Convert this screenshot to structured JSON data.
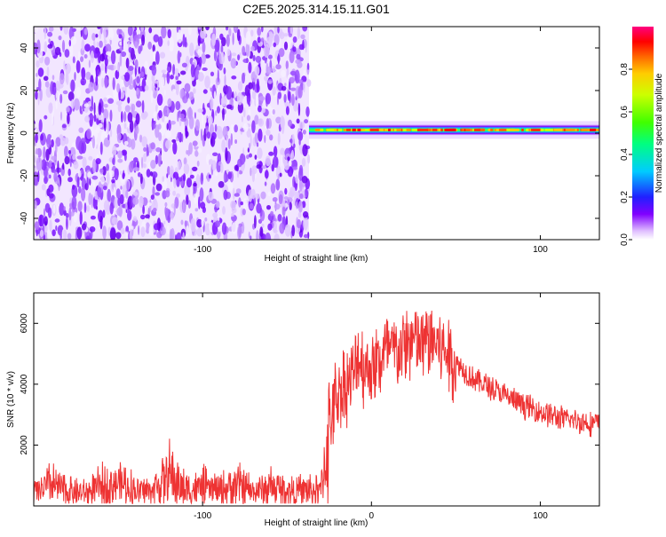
{
  "title": "C2E5.2025.314.15.11.G01",
  "chart_data": [
    {
      "type": "heatmap",
      "xlabel": "Height of straight line (km)",
      "ylabel": "Frequency (Hz)",
      "xlim": [
        -200,
        135
      ],
      "ylim": [
        -50,
        50
      ],
      "x_ticks": [
        -100,
        0,
        100
      ],
      "x_tick_labels": [
        "-100",
        "",
        "100"
      ],
      "y_ticks": [
        -40,
        -20,
        0,
        20,
        40
      ],
      "y_tick_labels": [
        "-40",
        "-20",
        "0",
        "20",
        "40"
      ],
      "noise_region_x": [
        -200,
        -37
      ],
      "signal_band": {
        "x_range": [
          -37,
          135
        ],
        "center_frequency_hz": 1.5,
        "half_width_hz": 2.5
      },
      "colorbar": {
        "label": "Normalized spectral amplitude",
        "range": [
          0,
          1
        ],
        "ticks": [
          0,
          0.2,
          0.4,
          0.6,
          0.8
        ],
        "tick_labels": [
          "0.0",
          "0.2",
          "0.4",
          "0.6",
          "0.8"
        ]
      },
      "grid": false
    },
    {
      "type": "line",
      "xlabel": "Height of straight line (km)",
      "ylabel": "SNR (10 * v/v)",
      "xlim": [
        -200,
        135
      ],
      "ylim": [
        0,
        7000
      ],
      "x_ticks": [
        -100,
        0,
        100
      ],
      "x_tick_labels": [
        "-100",
        "0",
        "100"
      ],
      "y_ticks": [
        2000,
        4000,
        6000
      ],
      "y_tick_labels": [
        "2000",
        "4000",
        "6000"
      ],
      "line_color": "#ee3333",
      "grid": false,
      "series": [
        {
          "x": [
            -200,
            -190,
            -180,
            -170,
            -160,
            -150,
            -140,
            -130,
            -120,
            -110,
            -100,
            -90,
            -80,
            -70,
            -60,
            -50,
            -40,
            -30,
            -25,
            -22,
            -20,
            -15,
            -10,
            -8,
            -5,
            0,
            5,
            10,
            15,
            20,
            25,
            30,
            35,
            40,
            45,
            50,
            60,
            70,
            80,
            90,
            100,
            110,
            120,
            135
          ],
          "y": [
            400,
            700,
            500,
            400,
            600,
            800,
            500,
            500,
            1000,
            500,
            600,
            500,
            700,
            450,
            600,
            500,
            500,
            500,
            2500,
            3400,
            3700,
            4000,
            4300,
            5000,
            4600,
            4500,
            4800,
            5100,
            5000,
            5300,
            5400,
            5300,
            5500,
            5300,
            5000,
            4700,
            4200,
            3900,
            3600,
            3300,
            3100,
            2900,
            2800,
            2700
          ]
        }
      ]
    }
  ]
}
